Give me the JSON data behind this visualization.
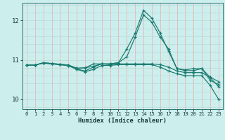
{
  "xlabel": "Humidex (Indice chaleur)",
  "bg_color": "#cceeed",
  "line_color": "#1a7a6e",
  "grid_color_h": "#b8dedd",
  "grid_color_v": "#e8b8b8",
  "xlim": [
    -0.5,
    23.5
  ],
  "ylim": [
    9.75,
    12.45
  ],
  "yticks": [
    10,
    11,
    12
  ],
  "xticks": [
    0,
    1,
    2,
    3,
    4,
    5,
    6,
    7,
    8,
    9,
    10,
    11,
    12,
    13,
    14,
    15,
    16,
    17,
    18,
    19,
    20,
    21,
    22,
    23
  ],
  "curves": [
    [
      10.87,
      10.87,
      10.92,
      10.9,
      10.88,
      10.86,
      10.76,
      10.7,
      10.76,
      10.86,
      10.86,
      10.88,
      10.88,
      10.88,
      10.88,
      10.88,
      10.82,
      10.72,
      10.65,
      10.6,
      10.6,
      10.6,
      10.35,
      10.0
    ],
    [
      10.87,
      10.87,
      10.92,
      10.9,
      10.88,
      10.85,
      10.77,
      10.72,
      10.82,
      10.9,
      10.88,
      10.9,
      10.9,
      10.9,
      10.9,
      10.9,
      10.88,
      10.82,
      10.72,
      10.68,
      10.68,
      10.68,
      10.55,
      10.32
    ],
    [
      10.87,
      10.87,
      10.93,
      10.91,
      10.89,
      10.87,
      10.79,
      10.8,
      10.84,
      10.9,
      10.9,
      10.93,
      11.28,
      11.68,
      12.26,
      12.06,
      11.68,
      11.22,
      10.78,
      10.75,
      10.78,
      10.78,
      10.56,
      10.45
    ],
    [
      10.87,
      10.87,
      10.93,
      10.91,
      10.89,
      10.87,
      10.79,
      10.8,
      10.9,
      10.9,
      10.9,
      10.93,
      11.08,
      11.58,
      12.14,
      11.96,
      11.58,
      11.28,
      10.78,
      10.73,
      10.73,
      10.78,
      10.48,
      10.38
    ]
  ]
}
